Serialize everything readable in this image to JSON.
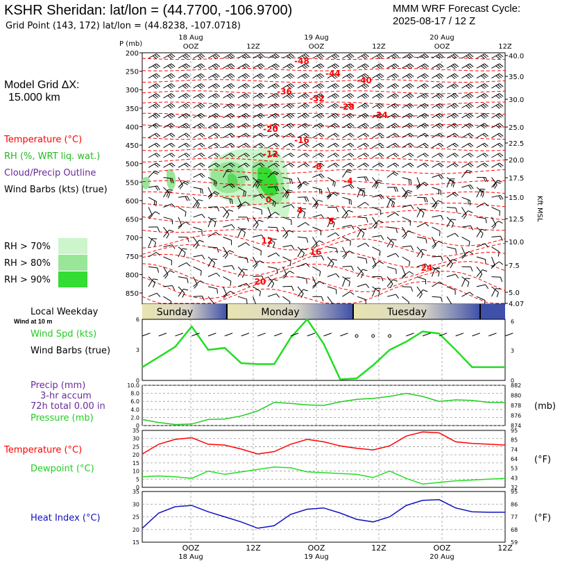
{
  "header": {
    "title": "KSHR Sheridan:  lat/lon = (44.7700, -106.9700)",
    "subtitle": "Grid Point (143, 172) lat/lon = (44.8238, -107.0718)",
    "cycle_line1": "MMM WRF Forecast Cycle:",
    "cycle_line2": "2025-08-17 / 12  Z"
  },
  "side": {
    "grid_label": "Model Grid ΔX:",
    "grid_value": "15.000 km",
    "legend_temp": "Temperature (°C)",
    "legend_rh": "RH (%, WRT liq. wat.)",
    "legend_cloud": "Cloud/Precip Outline",
    "legend_wind": "Wind Barbs (kts) (true)",
    "rh70": "RH > 70%",
    "rh80": "RH > 80%",
    "rh90": "RH > 90%",
    "local_weekday": "Local Weekday",
    "wind_at": "Wind at 10 m",
    "wind_spd": "Wind Spd (kts)",
    "wind_barbs": "Wind Barbs (true)",
    "precip": "Precip (mm)",
    "accum": "3-hr accum",
    "total": "72h total 0.00 in",
    "pressure": "Pressure (mb)",
    "temp": "Temperature (°C)",
    "dewpoint": "Dewpoint (°C)",
    "heat_index": "Heat Index (°C)",
    "unit_mb": "(mb)",
    "unit_f1": "(°F)",
    "unit_f2": "(°F)"
  },
  "colors": {
    "temperature": "#ff0000",
    "dewpoint": "#22dd22",
    "heat_index": "#1010c0",
    "cloud": "#6a2a9a",
    "rh70": "#ccf5cc",
    "rh80": "#99e699",
    "rh90": "#33dd33"
  },
  "time_axis": {
    "top_dates": [
      "18 Aug",
      "19 Aug",
      "20 Aug"
    ],
    "top_times": [
      "OOZ",
      "12Z",
      "OOZ",
      "12Z",
      "OOZ",
      "12Z"
    ],
    "bottom_times": [
      "OOZ",
      "12Z",
      "OOZ",
      "12Z",
      "OOZ",
      "12Z"
    ],
    "bottom_dates": [
      "18 Aug",
      "19 Aug",
      "20 Aug"
    ],
    "weekdays": [
      "Sunday",
      "Monday",
      "Tuesday"
    ]
  },
  "chart_data": [
    {
      "type": "line",
      "panel": "sounding",
      "y_axis_label": "P (mb)",
      "y_right_label": "Kft MSL",
      "pressure_levels": [
        200,
        250,
        300,
        350,
        400,
        450,
        500,
        550,
        600,
        650,
        700,
        750,
        800,
        850
      ],
      "kft_ticks": [
        "40.0",
        "35.0",
        "30.0",
        "25.0",
        "22.5",
        "20.0",
        "17.5",
        "15.0",
        "12.5",
        "10.0",
        "7.5",
        "5.0",
        "4.07"
      ],
      "temperature_labels": [
        "-48",
        "-44",
        "-40",
        "-36",
        "-32",
        "-28",
        "-24",
        "-20",
        "-16",
        "-12",
        "-8",
        "-4",
        "0",
        "4",
        "8",
        "12",
        "16",
        "20",
        "24"
      ]
    },
    {
      "type": "line",
      "panel": "wind",
      "series": [
        {
          "name": "Wind Spd (kts)",
          "values": [
            1.3,
            2.3,
            3.3,
            5.3,
            3.0,
            3.2,
            1.7,
            1.6,
            1.6,
            4.2,
            6.0,
            3.6,
            0.1,
            0.2,
            1.5,
            3.0,
            3.8,
            4.8,
            4.6,
            3.0,
            1.3,
            1.3,
            1.3
          ]
        }
      ],
      "ylim": [
        0,
        6
      ],
      "y_ticks": [
        0,
        3,
        6
      ]
    },
    {
      "type": "line",
      "panel": "pressure",
      "series": [
        {
          "name": "Pressure (mb)",
          "values": [
            875.2,
            874.6,
            874.2,
            874.3,
            875.2,
            875.3,
            875.9,
            876.9,
            878.6,
            878.4,
            878.1,
            878.0,
            878.7,
            879.2,
            879.4,
            879.8,
            880.4,
            879.8,
            878.8,
            879.1,
            879.0,
            878.6,
            878.6
          ]
        }
      ],
      "ylim": [
        874,
        882
      ],
      "y_ticks": [
        874,
        876,
        878,
        880,
        882
      ],
      "precip_axis_ticks": [
        "0",
        "2.0",
        "4.0",
        "6.0",
        "8.0",
        "10.0"
      ]
    },
    {
      "type": "line",
      "panel": "temperature",
      "series": [
        {
          "name": "Temperature (°C)",
          "values": [
            20.5,
            26.5,
            29.5,
            30.5,
            26.5,
            26.0,
            23.5,
            20.5,
            22.0,
            26.5,
            29.5,
            28.0,
            25.5,
            24.0,
            23.0,
            25.5,
            31.5,
            34.0,
            33.5,
            28.0,
            27.0,
            26.5,
            26.0
          ]
        },
        {
          "name": "Dewpoint (°C)",
          "values": [
            6.5,
            7.0,
            6.5,
            5.5,
            10.0,
            8.0,
            9.5,
            11.0,
            12.5,
            12.0,
            9.5,
            9.0,
            8.5,
            8.0,
            6.0,
            10.0,
            5.5,
            2.0,
            3.0,
            4.0,
            4.5,
            5.0,
            5.5
          ]
        }
      ],
      "ylim": [
        0,
        35
      ],
      "y_ticks": [
        0,
        5,
        10,
        15,
        20,
        25,
        30,
        35
      ],
      "y2_ticks": [
        "32",
        "43",
        "53",
        "64",
        "74",
        "85",
        "95"
      ]
    },
    {
      "type": "line",
      "panel": "heat_index",
      "series": [
        {
          "name": "Heat Index (°C)",
          "values": [
            20.5,
            26.5,
            29.0,
            29.5,
            27.0,
            25.0,
            23.0,
            20.5,
            21.5,
            26.0,
            28.0,
            28.5,
            26.5,
            24.0,
            23.0,
            25.0,
            29.5,
            31.5,
            31.8,
            28.5,
            27.0,
            26.8,
            26.8
          ]
        }
      ],
      "ylim": [
        15,
        35
      ],
      "y_ticks": [
        15,
        20,
        25,
        30,
        35
      ],
      "y2_ticks": [
        "59",
        "68",
        "77",
        "86",
        "95"
      ]
    }
  ]
}
